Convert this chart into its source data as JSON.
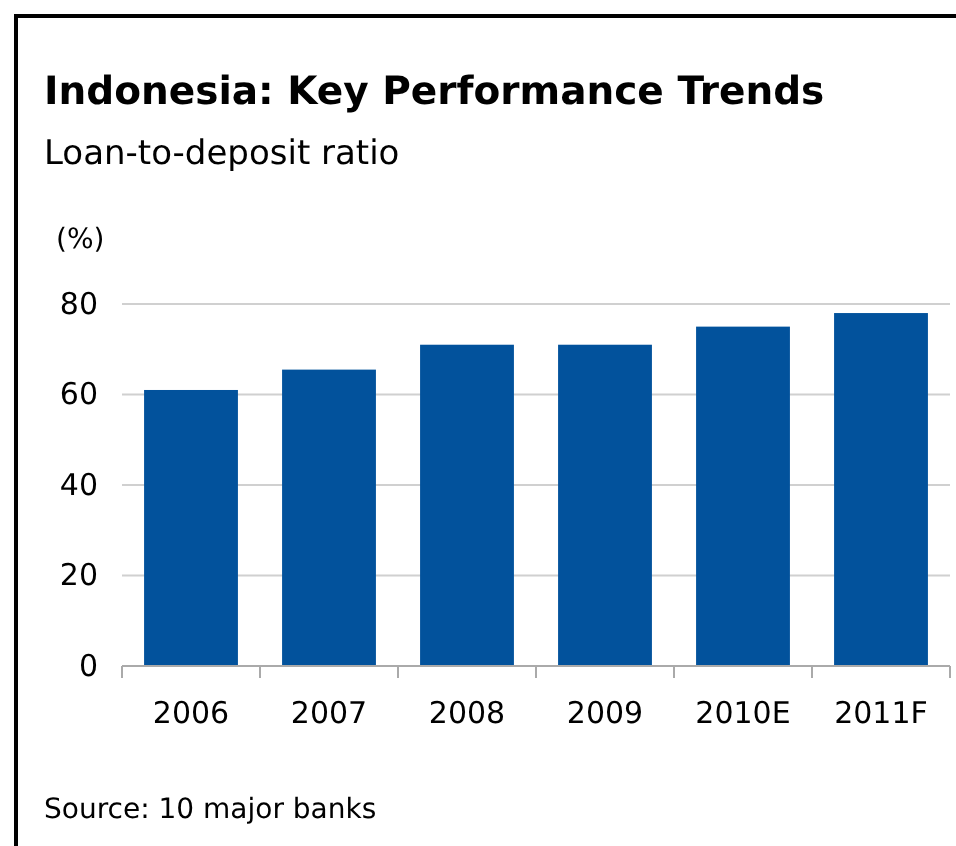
{
  "chart_data": {
    "type": "bar",
    "title": "Indonesia: Key Performance Trends",
    "subtitle": "Loan-to-deposit ratio",
    "ylabel": "(%)",
    "categories": [
      "2006",
      "2007",
      "2008",
      "2009",
      "2010E",
      "2011F"
    ],
    "values": [
      61,
      65.5,
      71,
      71,
      75,
      78
    ],
    "color": "#02529c",
    "ylim": [
      0,
      80
    ],
    "yticks": [
      0,
      20,
      40,
      60,
      80
    ],
    "grid": "y",
    "annotations": [
      "Source: 10 major banks"
    ]
  }
}
